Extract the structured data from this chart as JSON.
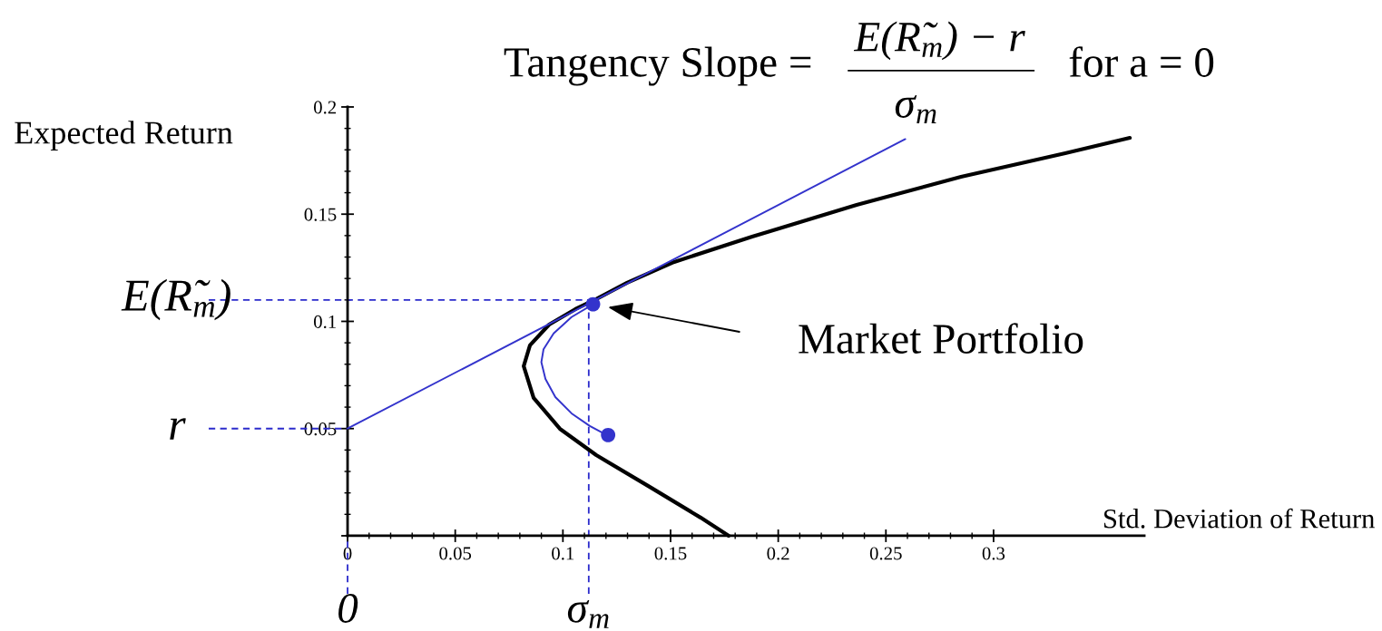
{
  "chart_data": {
    "type": "line",
    "title": "Tangency Slope =",
    "xlabel": "Std. Deviation of Return",
    "ylabel": "Expected Return",
    "xlim": [
      0,
      0.37
    ],
    "ylim": [
      0,
      0.2
    ],
    "xticks": [
      {
        "value": 0,
        "label": "0"
      },
      0.05,
      0.1,
      0.15,
      0.2,
      0.25,
      0.3
    ],
    "yticks": [
      {
        "value": 0,
        "label": null
      },
      0.05,
      0.1,
      0.15,
      0.2
    ],
    "series": [
      {
        "color": "#000000",
        "marker": "none",
        "line_style": "solid",
        "x": [
          0.177,
          0.1639,
          0.1395,
          0.1155,
          0.0986,
          0.0864,
          0.0818,
          0.0847,
          0.0936,
          0.1058,
          0.1155,
          0.1298,
          0.1517,
          0.1879,
          0.2364,
          0.2849,
          0.3333,
          0.3633
        ],
        "values": [
          0,
          0.0085,
          0.0233,
          0.0376,
          0.0499,
          0.0643,
          0.0791,
          0.0888,
          0.0985,
          0.1057,
          0.1104,
          0.118,
          0.1277,
          0.1395,
          0.1543,
          0.1674,
          0.1784,
          0.1856
        ]
      },
      {
        "color": "#3333cc",
        "marker": "none",
        "line_style": "solid",
        "x": [
          0,
          0.259
        ],
        "values": [
          0.05,
          0.185
        ]
      },
      {
        "color": "#3333cc",
        "marker": "none",
        "line_style": "solid",
        "x": [
          0.114,
          0.104,
          0.0957,
          0.091,
          0.09,
          0.0919,
          0.0965,
          0.104,
          0.1125,
          0.1188
        ],
        "values": [
          0.108,
          0.102,
          0.0944,
          0.087,
          0.081,
          0.0731,
          0.0647,
          0.0571,
          0.0512,
          0.0478
        ]
      },
      {
        "type": "scatter",
        "color": "#3333cc",
        "marker": "circle",
        "x": [
          0.114,
          0.121
        ],
        "values": [
          0.108,
          0.047
        ]
      }
    ],
    "ref_lines": [
      {
        "axis": "y",
        "value": 0.11,
        "label": "E(R̃$_{m}$)",
        "color": "#2b2bcc",
        "line_style": "dashed"
      },
      {
        "axis": "y",
        "value": 0.05,
        "label": "r",
        "color": "#2b2bcc",
        "line_style": "dashed"
      },
      {
        "axis": "x",
        "value": 0,
        "label": "0",
        "color": "#2b2bcc",
        "line_style": "dashed"
      },
      {
        "axis": "x",
        "value": 0.112,
        "label": "σ$_{m}$",
        "color": "#2b2bcc",
        "line_style": "dashed"
      }
    ],
    "annotations": [
      "E(R̃$_{m}$) − r",
      "σ$_{m}$",
      "for a = 0",
      "Market Portfolio"
    ]
  }
}
